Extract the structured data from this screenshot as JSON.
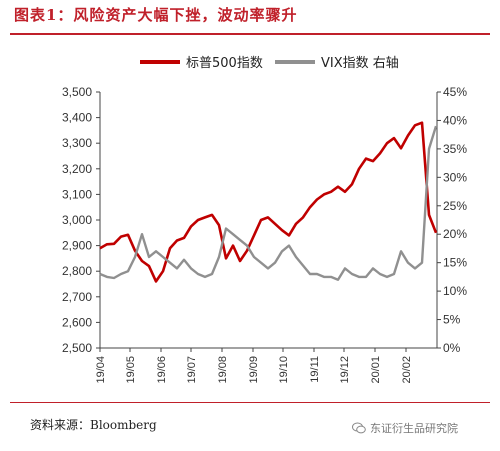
{
  "header": {
    "title": "图表1：风险资产大幅下挫，波动率骤升"
  },
  "footer": {
    "source": "资料来源：Bloomberg",
    "watermark": "东证衍生品研究院"
  },
  "chart_data": {
    "type": "line",
    "title": "",
    "x_ticks": [
      "19/04",
      "19/05",
      "19/06",
      "19/07",
      "19/08",
      "19/09",
      "19/10",
      "19/11",
      "19/12",
      "20/01",
      "20/02"
    ],
    "y_left": {
      "ticks": [
        "2,500",
        "2,600",
        "2,700",
        "2,800",
        "2,900",
        "3,000",
        "3,100",
        "3,200",
        "3,300",
        "3,400",
        "3,500"
      ],
      "lim": [
        2500,
        3500
      ]
    },
    "y_right": {
      "ticks": [
        "0%",
        "5%",
        "10%",
        "15%",
        "20%",
        "25%",
        "30%",
        "35%",
        "40%",
        "45%"
      ],
      "lim": [
        0,
        45
      ]
    },
    "legend_position": "top",
    "grid": false,
    "series": [
      {
        "name": "标普500指数",
        "axis": "left",
        "color": "#c00000",
        "x": [
          "19/04/01",
          "19/04/08",
          "19/04/15",
          "19/04/22",
          "19/04/29",
          "19/05/06",
          "19/05/13",
          "19/05/20",
          "19/05/27",
          "19/06/03",
          "19/06/10",
          "19/06/17",
          "19/06/24",
          "19/07/01",
          "19/07/08",
          "19/07/15",
          "19/07/22",
          "19/07/29",
          "19/08/05",
          "19/08/12",
          "19/08/19",
          "19/08/26",
          "19/09/02",
          "19/09/09",
          "19/09/16",
          "19/09/23",
          "19/09/30",
          "19/10/07",
          "19/10/14",
          "19/10/21",
          "19/10/28",
          "19/11/04",
          "19/11/11",
          "19/11/18",
          "19/11/25",
          "19/12/02",
          "19/12/09",
          "19/12/16",
          "19/12/23",
          "19/12/30",
          "20/01/06",
          "20/01/13",
          "20/01/20",
          "20/01/27",
          "20/02/03",
          "20/02/10",
          "20/02/17",
          "20/02/24",
          "20/03/02"
        ],
        "values": [
          2890,
          2905,
          2907,
          2935,
          2942,
          2880,
          2840,
          2820,
          2760,
          2800,
          2890,
          2920,
          2930,
          2975,
          3000,
          3010,
          3020,
          2980,
          2850,
          2900,
          2840,
          2880,
          2940,
          3000,
          3010,
          2985,
          2960,
          2940,
          2985,
          3010,
          3050,
          3080,
          3100,
          3110,
          3130,
          3110,
          3140,
          3200,
          3240,
          3230,
          3260,
          3300,
          3320,
          3280,
          3330,
          3370,
          3380,
          3020,
          2950
        ]
      },
      {
        "name": "VIX指数 右轴",
        "axis": "right",
        "color": "#909090",
        "x": [
          "19/04/01",
          "19/04/08",
          "19/04/15",
          "19/04/22",
          "19/04/29",
          "19/05/06",
          "19/05/13",
          "19/05/20",
          "19/05/27",
          "19/06/03",
          "19/06/10",
          "19/06/17",
          "19/06/24",
          "19/07/01",
          "19/07/08",
          "19/07/15",
          "19/07/22",
          "19/07/29",
          "19/08/05",
          "19/08/12",
          "19/08/19",
          "19/08/26",
          "19/09/02",
          "19/09/09",
          "19/09/16",
          "19/09/23",
          "19/09/30",
          "19/10/07",
          "19/10/14",
          "19/10/21",
          "19/10/28",
          "19/11/04",
          "19/11/11",
          "19/11/18",
          "19/11/25",
          "19/12/02",
          "19/12/09",
          "19/12/16",
          "19/12/23",
          "19/12/30",
          "20/01/06",
          "20/01/13",
          "20/01/20",
          "20/01/27",
          "20/02/03",
          "20/02/10",
          "20/02/17",
          "20/02/24",
          "20/03/02"
        ],
        "values": [
          13,
          12.5,
          12.3,
          13,
          13.5,
          16,
          20,
          16,
          17,
          16,
          15,
          14,
          15.5,
          14,
          13,
          12.5,
          13,
          16,
          21,
          20,
          19,
          18,
          16,
          15,
          14,
          15,
          17,
          18,
          16,
          14.5,
          13,
          13,
          12.5,
          12.5,
          12,
          14,
          13,
          12.5,
          12.5,
          14,
          13,
          12.5,
          13,
          17,
          15,
          14,
          15,
          35,
          39
        ]
      }
    ]
  }
}
